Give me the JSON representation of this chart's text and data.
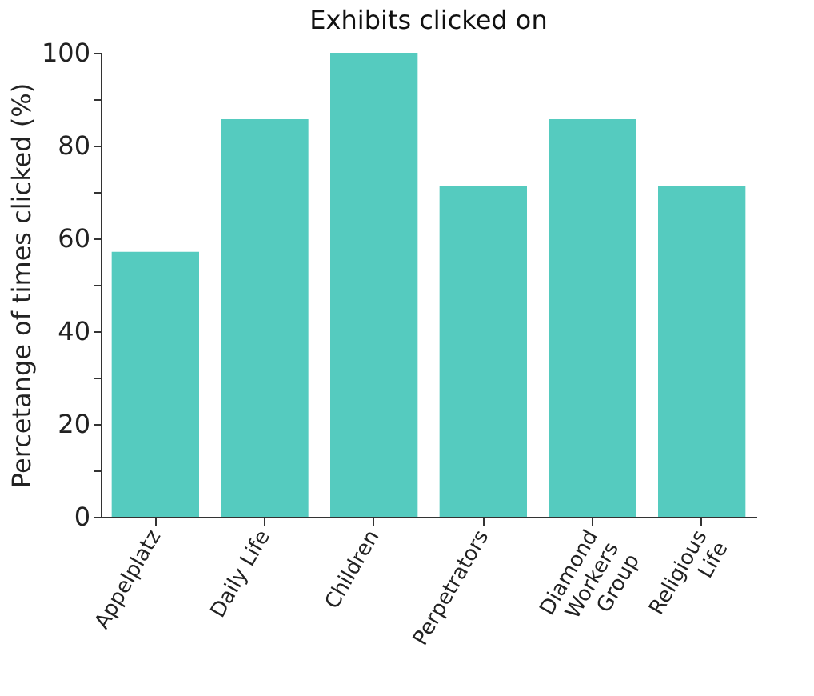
{
  "chart_data": {
    "type": "bar",
    "title": "Exhibits clicked on",
    "ylabel": "Percetange of times clicked (%)",
    "categories": [
      "Appelplatz",
      "Daily Life",
      "Children",
      "Perpetrators",
      "Diamond\nWorkers\nGroup",
      "Religious\nLife"
    ],
    "values": [
      57.1,
      85.7,
      100,
      71.4,
      85.7,
      71.4
    ],
    "color": "#55cbbf",
    "ylim": [
      0,
      100
    ],
    "yticks": [
      0,
      {
        "value": 10,
        "label": null
      },
      20,
      {
        "value": 30,
        "label": null
      },
      40,
      {
        "value": 50,
        "label": null
      },
      60,
      {
        "value": 70,
        "label": null
      },
      80,
      {
        "value": 90,
        "label": null
      },
      100
    ],
    "grid": false
  }
}
